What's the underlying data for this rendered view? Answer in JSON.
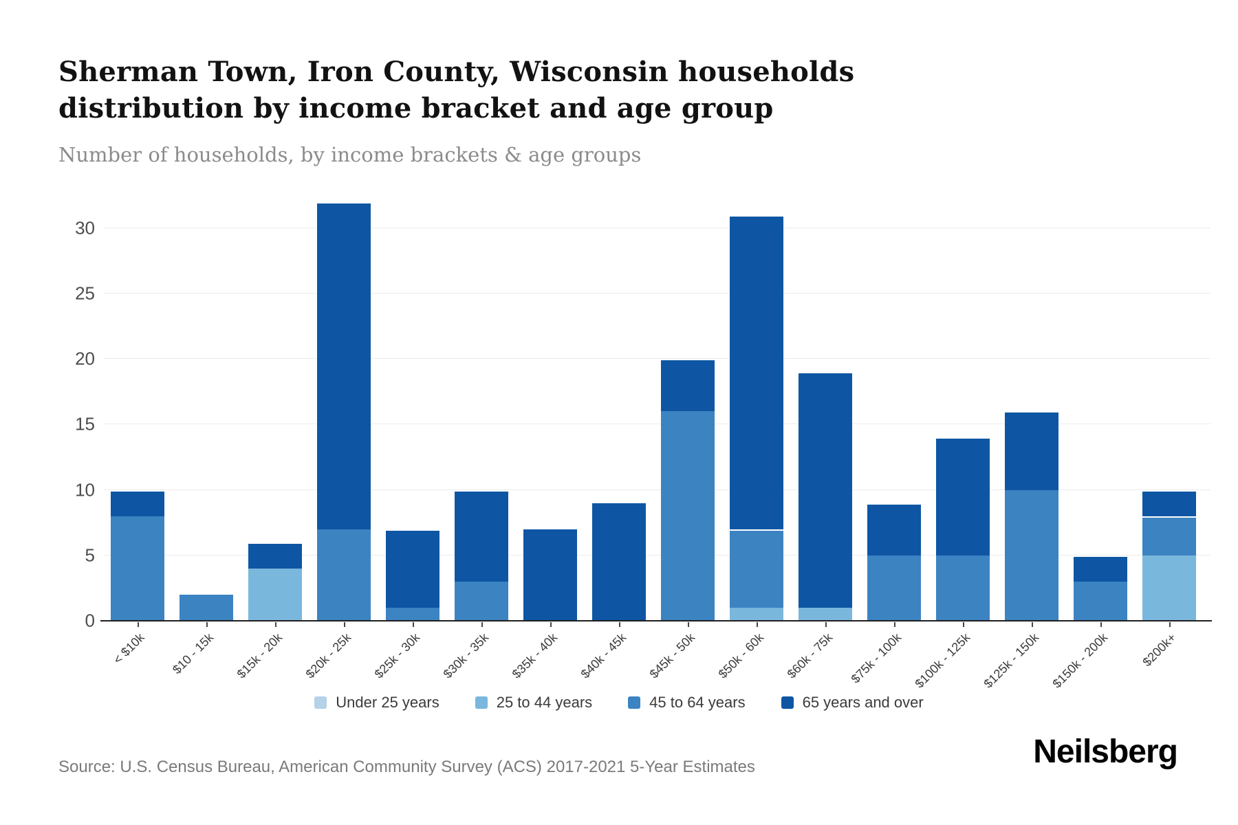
{
  "header": {
    "title": "Sherman Town, Iron County, Wisconsin households distribution by income bracket and age group",
    "subtitle": "Number of households, by income brackets & age groups"
  },
  "chart_data": {
    "type": "bar",
    "stacked": true,
    "title": "Sherman Town, Iron County, Wisconsin households distribution by income bracket and age group",
    "xlabel": "",
    "ylabel": "Number of households",
    "grid": true,
    "legend_position": "bottom",
    "yticks": [
      0,
      5,
      10,
      15,
      20,
      25,
      30
    ],
    "ylim": [
      0,
      33.5
    ],
    "categories": [
      "< $10k",
      "$10 - 15k",
      "$15k - 20k",
      "$20k - 25k",
      "$25k - 30k",
      "$30k - 35k",
      "$35k - 40k",
      "$40k - 45k",
      "$45k - 50k",
      "$50k - 60k",
      "$60k - 75k",
      "$75k - 100k",
      "$100k - 125k",
      "$125k - 150k",
      "$150k - 200k",
      "$200k+"
    ],
    "series": [
      {
        "name": "Under 25 years",
        "color": "#b4d2e8",
        "values": [
          0,
          0,
          0,
          0,
          0,
          0,
          0,
          0,
          0,
          0,
          0,
          0,
          0,
          0,
          0,
          0
        ]
      },
      {
        "name": "25 to 44 years",
        "color": "#7ab7dd",
        "values": [
          0,
          0,
          4,
          0,
          0,
          0,
          0,
          0,
          0,
          1,
          1,
          0,
          0,
          0,
          0,
          5
        ]
      },
      {
        "name": "45 to 64 years",
        "color": "#3c83c2",
        "values": [
          8,
          2,
          0,
          7,
          1,
          3,
          0,
          0,
          16,
          6,
          0,
          5,
          5,
          10,
          3,
          3
        ]
      },
      {
        "name": "65 years and over",
        "color": "#0e56a3",
        "values": [
          2,
          0,
          2,
          25,
          6,
          7,
          7,
          9,
          4,
          24,
          18,
          4,
          9,
          6,
          2,
          2
        ]
      }
    ],
    "totals": [
      10,
      2,
      6,
      32,
      7,
      10,
      7,
      9,
      20,
      31,
      19,
      9,
      14,
      16,
      5,
      10
    ]
  },
  "footer": {
    "source": "Source: U.S. Census Bureau, American Community Survey (ACS) 2017-2021 5-Year Estimates",
    "brand": "Neilsberg"
  }
}
